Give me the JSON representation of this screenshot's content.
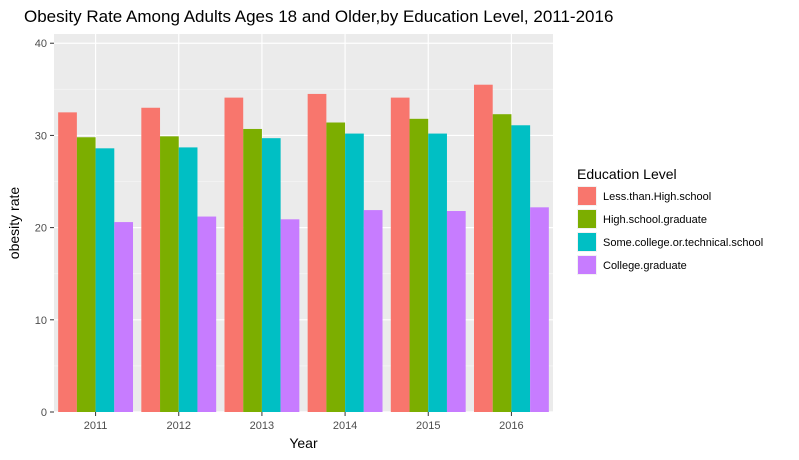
{
  "chart_data": {
    "type": "bar",
    "title": "Obesity Rate Among Adults Ages 18 and Older,by Education Level, 2011-2016",
    "xlabel": "Year",
    "ylabel": "obesity rate",
    "categories": [
      "2011",
      "2012",
      "2013",
      "2014",
      "2015",
      "2016"
    ],
    "ylim": [
      0,
      41
    ],
    "yticks": [
      0,
      10,
      20,
      30,
      40
    ],
    "grid": true,
    "legend": {
      "title": "Education Level",
      "placement": "right"
    },
    "series": [
      {
        "name": "Less.than.High.school",
        "color": "#F8766D",
        "values": [
          32.5,
          33.0,
          34.1,
          34.5,
          34.1,
          35.5
        ]
      },
      {
        "name": "High.school.graduate",
        "color": "#7CAE00",
        "values": [
          29.8,
          29.9,
          30.7,
          31.4,
          31.8,
          32.3
        ]
      },
      {
        "name": "Some.college.or.technical.school",
        "color": "#00BFC4",
        "values": [
          28.6,
          28.7,
          29.7,
          30.2,
          30.2,
          31.1
        ]
      },
      {
        "name": "College.graduate",
        "color": "#C77CFF",
        "values": [
          20.6,
          21.2,
          20.9,
          21.9,
          21.8,
          22.2
        ]
      }
    ]
  }
}
